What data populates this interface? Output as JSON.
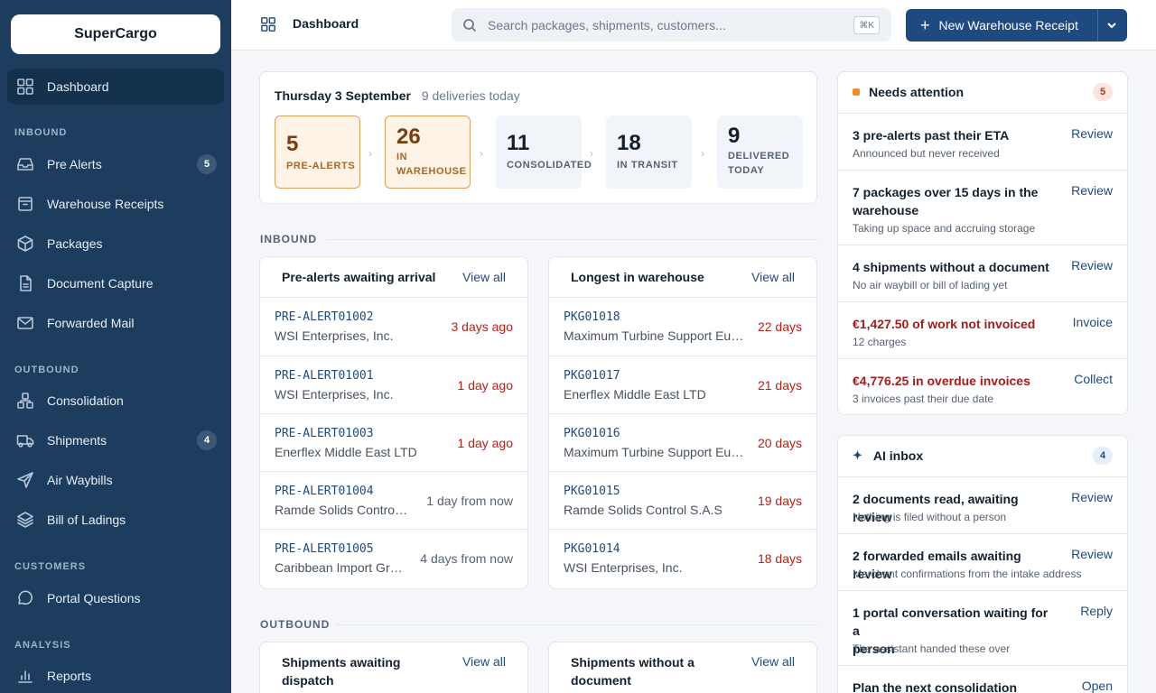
{
  "sidebar": {
    "brand": "SuperCargo",
    "sections": {
      "inbound": "INBOUND",
      "outbound": "OUTBOUND",
      "customers": "CUSTOMERS",
      "analysis": "ANALYSIS"
    },
    "items": [
      {
        "label": "Dashboard",
        "icon": "grid-icon"
      },
      {
        "label": "Pre Alerts",
        "icon": "inbox-icon",
        "badge": "5"
      },
      {
        "label": "Warehouse Receipts",
        "icon": "box-icon"
      },
      {
        "label": "Packages",
        "icon": "package-icon"
      },
      {
        "label": "Document Capture",
        "icon": "document-icon"
      },
      {
        "label": "Forwarded Mail",
        "icon": "mail-icon"
      },
      {
        "label": "Consolidation",
        "icon": "consolidation-icon"
      },
      {
        "label": "Shipments",
        "icon": "truck-icon",
        "badge": "4"
      },
      {
        "label": "Air Waybills",
        "icon": "paper-plane-icon"
      },
      {
        "label": "Bill of Ladings",
        "icon": "layers-icon"
      },
      {
        "label": "Portal Questions",
        "icon": "chat-icon"
      },
      {
        "label": "Reports",
        "icon": "chart-icon"
      }
    ]
  },
  "header": {
    "title": "Dashboard",
    "search_placeholder": "Search packages, shipments, customers...",
    "shortcut": "⌘K",
    "new_button": "New Warehouse Receipt"
  },
  "today": {
    "date": "Thursday 3 September",
    "summary": "9 deliveries today",
    "stages": [
      {
        "num": "5",
        "label": "PRE-ALERTS"
      },
      {
        "num": "26",
        "label_1": "IN",
        "label_2": "WAREHOUSE"
      },
      {
        "num": "11",
        "label": "CONSOLIDATED"
      },
      {
        "num": "18",
        "label": "IN TRANSIT"
      },
      {
        "num": "9",
        "label_1": "DELIVERED",
        "label_2": "TODAY"
      }
    ]
  },
  "inbound_label": "INBOUND",
  "outbound_label": "OUTBOUND",
  "pre_alerts": {
    "title": "Pre-alerts awaiting arrival",
    "view_all": "View all",
    "rows": [
      {
        "ref": "PRE-ALERT01002",
        "name": "WSI Enterprises, Inc.",
        "when": "3 days ago"
      },
      {
        "ref": "PRE-ALERT01001",
        "name": "WSI Enterprises, Inc.",
        "when": "1 day ago"
      },
      {
        "ref": "PRE-ALERT01003",
        "name": "Enerflex Middle East LTD",
        "when": "1 day ago"
      },
      {
        "ref": "PRE-ALERT01004",
        "name": "Ramde Solids Control S.A.S",
        "when": "1 day from now"
      },
      {
        "ref": "PRE-ALERT01005",
        "name": "Caribbean Import Group",
        "when": "4 days from now"
      }
    ]
  },
  "longest": {
    "title": "Longest in warehouse",
    "view_all": "View all",
    "rows": [
      {
        "ref": "PKG01018",
        "name": "Maximum Turbine Support Europe",
        "when": "22 days"
      },
      {
        "ref": "PKG01017",
        "name": "Enerflex Middle East LTD",
        "when": "21 days"
      },
      {
        "ref": "PKG01016",
        "name": "Maximum Turbine Support Europe",
        "when": "20 days"
      },
      {
        "ref": "PKG01015",
        "name": "Ramde Solids Control S.A.S",
        "when": "19 days"
      },
      {
        "ref": "PKG01014",
        "name": "WSI Enterprises, Inc.",
        "when": "18 days"
      }
    ]
  },
  "outbound_cards": {
    "dispatch_title_1": "Shipments awaiting",
    "dispatch_title_2": "dispatch",
    "nodoc_title_1": "Shipments without a",
    "nodoc_title_2": "document",
    "view_all": "View all"
  },
  "attention": {
    "title": "Needs attention",
    "count": "5",
    "items": [
      {
        "title": "3 pre-alerts past their ETA",
        "sub": "Announced but never received",
        "action": "Review"
      },
      {
        "title_1": "7 packages over 15 days in the",
        "title_2": "warehouse",
        "sub": "Taking up space and accruing storage",
        "action": "Review"
      },
      {
        "title": "4 shipments without a document",
        "sub": "No air waybill or bill of lading yet",
        "action": "Review"
      },
      {
        "title": "€1,427.50 of work not invoiced",
        "sub": "12 charges",
        "action": "Invoice"
      },
      {
        "title": "€4,776.25 in overdue invoices",
        "sub": "3 invoices past their due date",
        "action": "Collect"
      }
    ]
  },
  "ai_inbox": {
    "title": "AI inbox",
    "count": "4",
    "items": [
      {
        "title": "2 documents read, awaiting review",
        "sub": "Nothing is filed without a person",
        "action": "Review"
      },
      {
        "title": "2 forwarded emails awaiting review",
        "sub": "Merchant confirmations from the intake address",
        "action": "Review"
      },
      {
        "title_1": "1 portal conversation waiting for a",
        "title_2": "person",
        "sub": "The assistant handed these over",
        "action": "Reply"
      },
      {
        "title": "Plan the next consolidation",
        "action": "Open"
      }
    ]
  },
  "colors": {
    "sidebar": "#1c3d5e",
    "accent": "#1f4a80",
    "alert_red": "#b42318",
    "attention_orange": "#f08c2a"
  }
}
